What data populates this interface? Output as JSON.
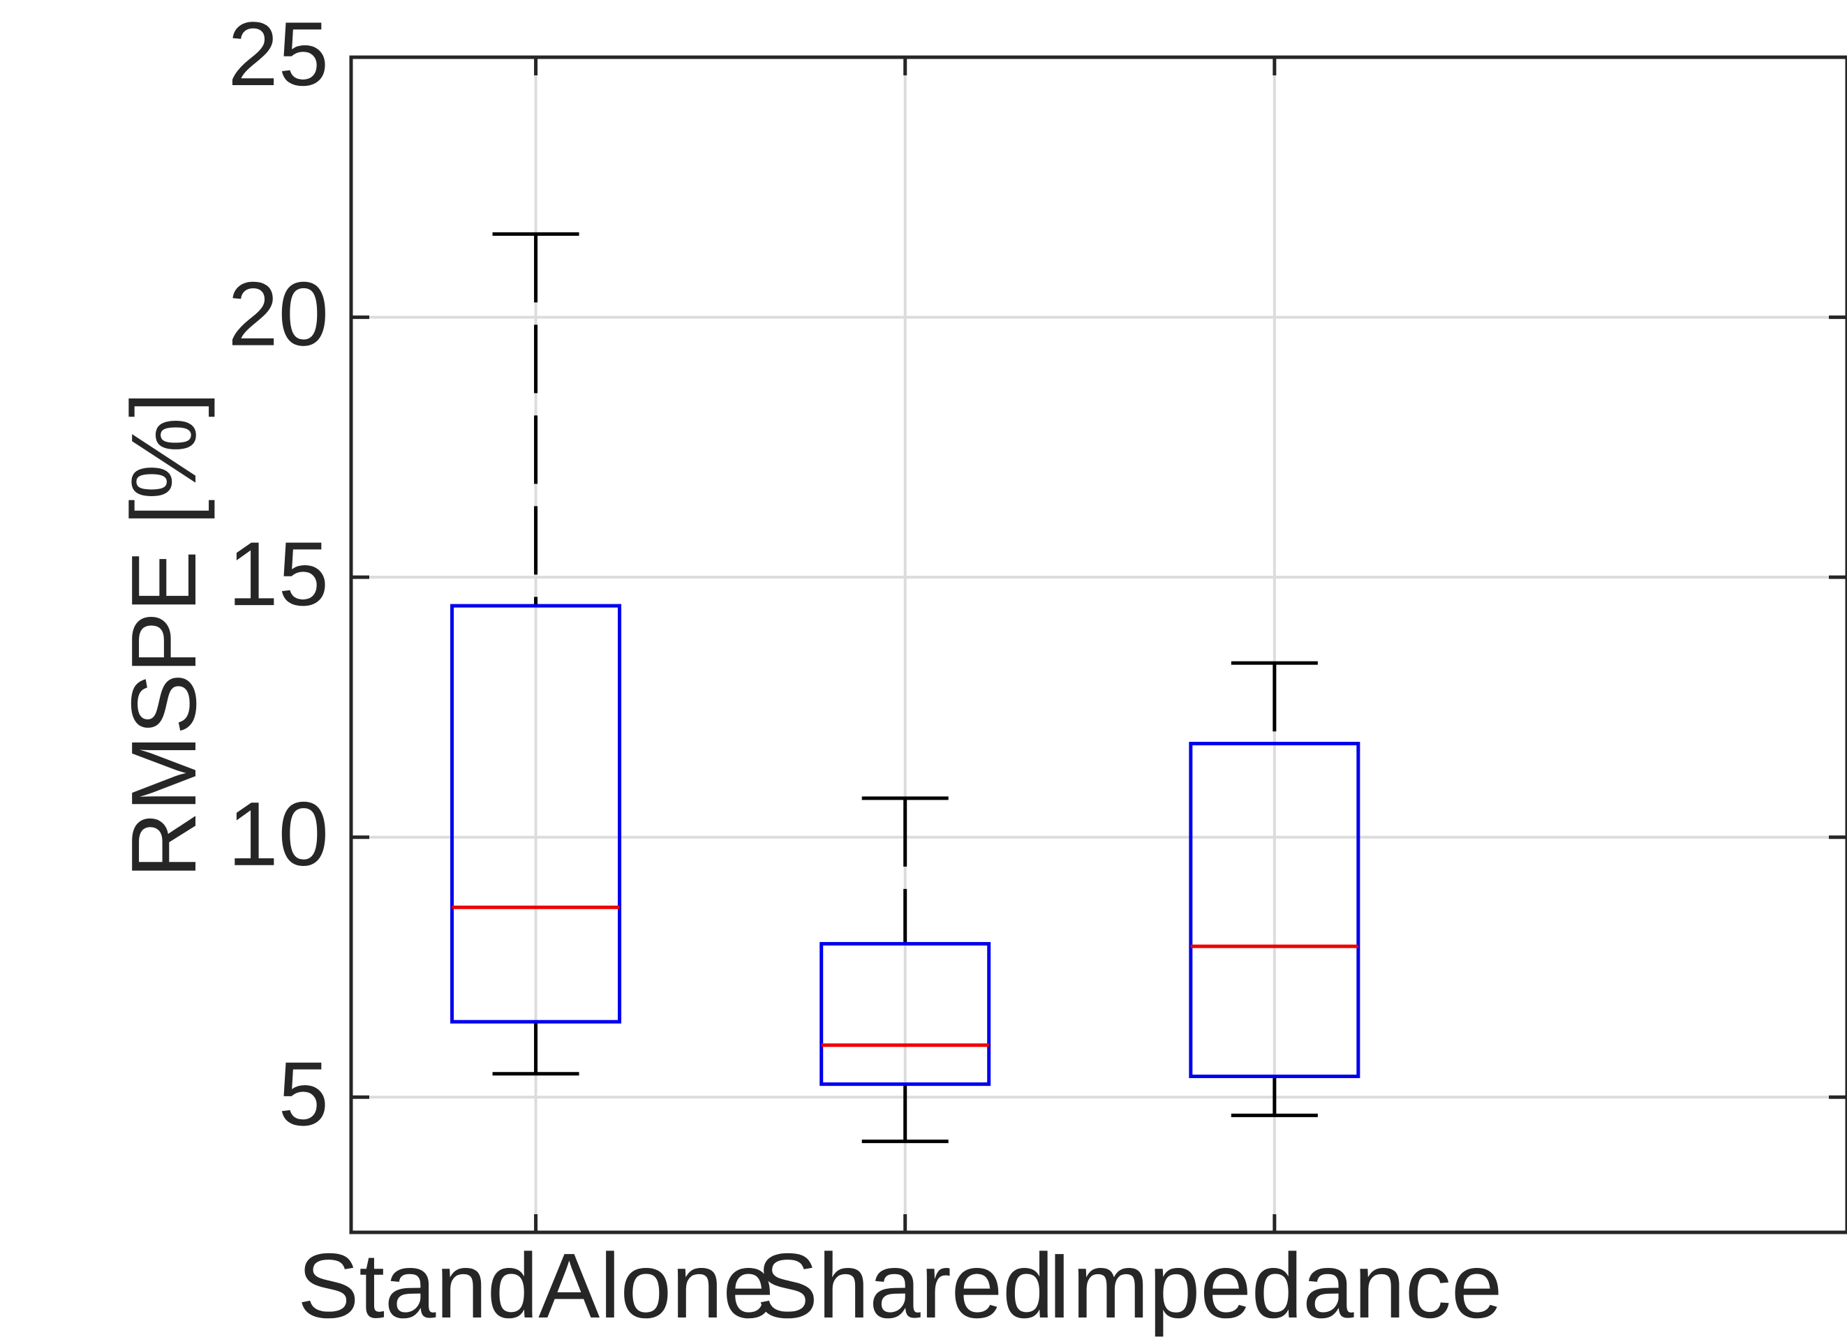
{
  "chart_data": {
    "type": "box",
    "categories": [
      "StandAlone",
      "Shared",
      "Impedance"
    ],
    "ylabel": "RMSPE [%]",
    "xlabel": "",
    "title": "",
    "ylim": [
      2.4,
      25
    ],
    "yticks": [
      5,
      10,
      15,
      20,
      25
    ],
    "grid": true,
    "boxes": [
      {
        "category": "StandAlone",
        "whisker_low": 5.45,
        "q1": 6.45,
        "median": 8.65,
        "q3": 14.45,
        "whisker_high": 21.6
      },
      {
        "category": "Shared",
        "whisker_low": 4.15,
        "q1": 5.25,
        "median": 6.0,
        "q3": 7.95,
        "whisker_high": 10.75
      },
      {
        "category": "Impedance",
        "whisker_low": 4.65,
        "q1": 5.4,
        "median": 7.9,
        "q3": 11.8,
        "whisker_high": 13.35
      }
    ],
    "colors": {
      "box": "#0000ee",
      "median": "#ee0000",
      "whisker": "#000000",
      "grid": "#dcdcdc",
      "axis": "#262626",
      "text": "#262626"
    }
  }
}
